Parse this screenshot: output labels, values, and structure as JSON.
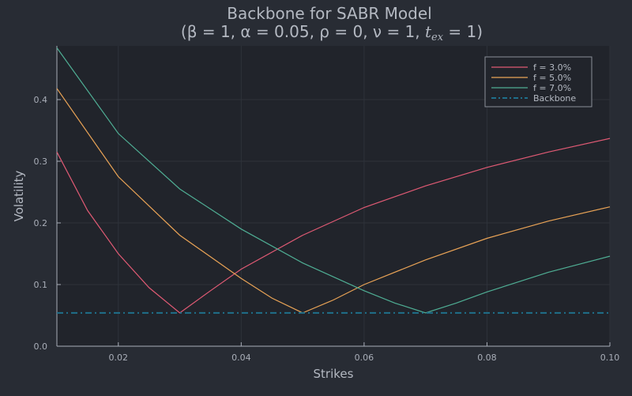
{
  "chart_data": {
    "type": "line",
    "title": "Backbone for SABR Model",
    "subtitle": "(β = 1, α = 0.05, ρ = 0, ν = 1, t_ex = 1)",
    "subtitle_main": "(β = 1, α = 0.05, ρ = 0, ν = 1, ",
    "subtitle_tex": "t",
    "subtitle_sub": "ex",
    "subtitle_end": " = 1)",
    "xlabel": "Strikes",
    "ylabel": "Volatility",
    "xlim": [
      0.01,
      0.1
    ],
    "ylim": [
      0.0,
      0.49
    ],
    "xticks": [
      "0.02",
      "0.04",
      "0.06",
      "0.08",
      "0.10"
    ],
    "yticks": [
      "0.0",
      "0.1",
      "0.2",
      "0.3",
      "0.4"
    ],
    "grid": true,
    "legend_position": "top-right",
    "series": [
      {
        "name": "f = 3.0%",
        "color": "#e05a74",
        "forward": 0.03,
        "x": [
          0.01,
          0.015,
          0.02,
          0.025,
          0.03,
          0.035,
          0.04,
          0.05,
          0.06,
          0.07,
          0.08,
          0.09,
          0.1
        ],
        "values": [
          0.315,
          0.22,
          0.15,
          0.095,
          0.054,
          0.09,
          0.125,
          0.18,
          0.225,
          0.26,
          0.29,
          0.315,
          0.337
        ]
      },
      {
        "name": "f = 5.0%",
        "color": "#e9a356",
        "forward": 0.05,
        "x": [
          0.01,
          0.02,
          0.03,
          0.04,
          0.045,
          0.05,
          0.055,
          0.06,
          0.07,
          0.08,
          0.09,
          0.1
        ],
        "values": [
          0.418,
          0.275,
          0.18,
          0.11,
          0.078,
          0.054,
          0.075,
          0.1,
          0.14,
          0.175,
          0.203,
          0.226
        ]
      },
      {
        "name": "f = 7.0%",
        "color": "#4fae94",
        "forward": 0.07,
        "x": [
          0.01,
          0.02,
          0.03,
          0.04,
          0.05,
          0.06,
          0.065,
          0.07,
          0.075,
          0.08,
          0.09,
          0.1
        ],
        "values": [
          0.484,
          0.345,
          0.255,
          0.19,
          0.135,
          0.09,
          0.07,
          0.054,
          0.07,
          0.088,
          0.12,
          0.146
        ]
      },
      {
        "name": "Backbone",
        "color": "#1f6f8b",
        "style": "dashdot",
        "x": [
          0.01,
          0.1
        ],
        "values": [
          0.054,
          0.054
        ]
      }
    ]
  }
}
